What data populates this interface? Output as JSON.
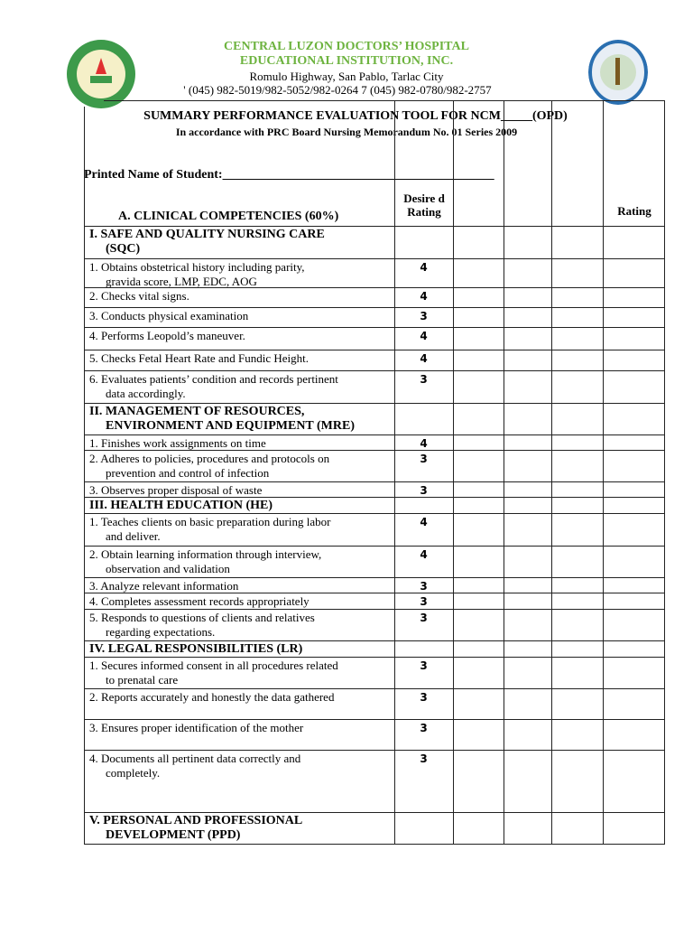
{
  "header": {
    "institution_line1": "CENTRAL LUZON DOCTORS’ HOSPITAL",
    "institution_line2": "EDUCATIONAL INSTITUTION, INC.",
    "address": "Romulo Highway, San Pablo, Tarlac City",
    "phone": "' (045) 982-5019/982-5052/982-0264 7 (045) 982-0780/982-2757",
    "title": "SUMMARY PERFORMANCE EVALUATION TOOL FOR NCM_____(OPD)",
    "subtitle": "In accordance with PRC Board Nursing Memorandum No. 01 Series 2009",
    "col_desired": "Desire d Rating",
    "col_rating": "Rating",
    "student_label": "Printed Name of Student:___________________________________________",
    "section": "A. CLINICAL COMPETENCIES (60%)",
    "colors": {
      "institution": "#6db33f",
      "left_logo": "#3d9a4a",
      "right_logo": "#2a6fb0"
    }
  },
  "rows": [
    {
      "text": "I. SAFE AND QUALITY NURSING CARE",
      "cont": "(SQC)",
      "score": "",
      "bold": true
    },
    {
      "text": "1. Obtains obstetrical history including parity,",
      "cont": "gravida score, LMP, EDC, AOG",
      "score": "4"
    },
    {
      "text": "2. Checks vital signs.",
      "score": "4"
    },
    {
      "text": "3. Conducts physical examination",
      "score": "3"
    },
    {
      "text": "4. Performs Leopold’s maneuver.",
      "score": "4"
    },
    {
      "text": "5. Checks Fetal Heart Rate and Fundic Height.",
      "score": "4"
    },
    {
      "text": "6. Evaluates patients’ condition and records pertinent",
      "cont": "data accordingly.",
      "score": "3"
    },
    {
      "text": "II. MANAGEMENT OF RESOURCES,",
      "cont": "ENVIRONMENT AND EQUIPMENT (MRE)",
      "score": "",
      "bold": true
    },
    {
      "text": "1. Finishes work assignments on time",
      "score": "4"
    },
    {
      "text": "2. Adheres to policies, procedures and protocols on",
      "cont": "prevention and control of infection",
      "score": "3"
    },
    {
      "text": "3. Observes proper disposal of waste",
      "score": "3"
    },
    {
      "text": "III. HEALTH EDUCATION (HE)",
      "score": "",
      "bold": true
    },
    {
      "text": "1. Teaches clients on basic preparation during labor",
      "cont": "and deliver.",
      "score": "4"
    },
    {
      "text": "2. Obtain learning information through interview,",
      "cont": "observation and validation",
      "score": "4"
    },
    {
      "text": "3. Analyze relevant information",
      "score": "3"
    },
    {
      "text": "4. Completes assessment records appropriately",
      "score": "3"
    },
    {
      "text": "5. Responds to questions of clients and relatives",
      "cont": "regarding expectations.",
      "score": "3"
    },
    {
      "text": "IV. LEGAL RESPONSIBILITIES (LR)",
      "score": "",
      "bold": true
    },
    {
      "text": "1. Secures informed consent in all procedures related",
      "cont": "to prenatal care",
      "score": "3"
    },
    {
      "text": "2. Reports accurately and honestly the data gathered",
      "score": "3"
    },
    {
      "text": "3. Ensures proper identification of the mother",
      "score": "3"
    },
    {
      "text": "4. Documents all pertinent data correctly and",
      "cont": "completely.",
      "score": "3"
    },
    {
      "text": "V. PERSONAL AND PROFESSIONAL",
      "cont": "DEVELOPMENT (PPD)",
      "score": "",
      "bold": true
    }
  ]
}
